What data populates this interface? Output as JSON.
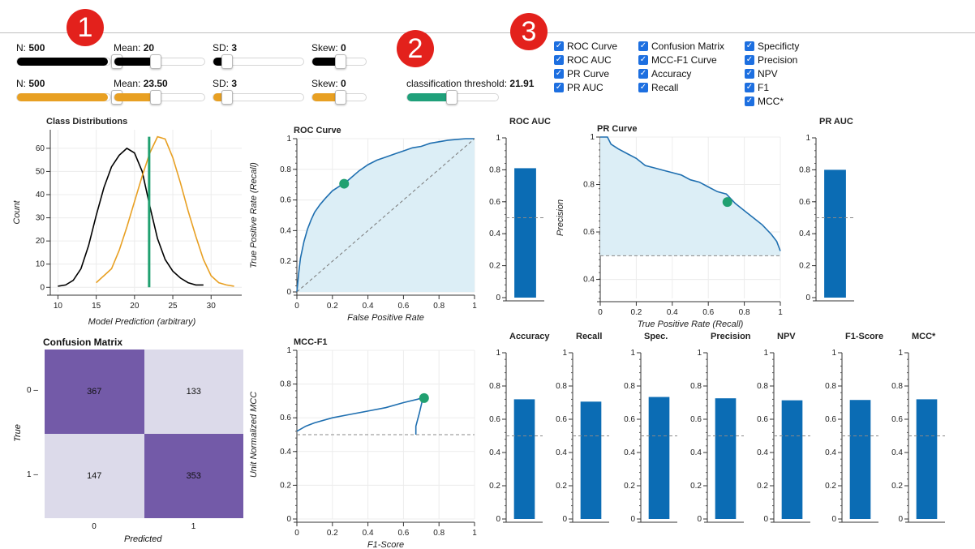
{
  "badges": [
    "1",
    "2",
    "3"
  ],
  "class0": {
    "n_label": "N: ",
    "n_value": "500",
    "mean_label": "Mean: ",
    "mean_value": "20",
    "sd_label": "SD: ",
    "sd_value": "3",
    "skew_label": "Skew: ",
    "skew_value": "0",
    "color": "#000000"
  },
  "class1": {
    "n_label": "N: ",
    "n_value": "500",
    "mean_label": "Mean: ",
    "mean_value": "23.50",
    "sd_label": "SD: ",
    "sd_value": "3",
    "skew_label": "Skew: ",
    "skew_value": "0",
    "color": "#e8a023"
  },
  "threshold": {
    "label": "classification threshold: ",
    "value": "21.91",
    "color": "#1fa07a"
  },
  "checkboxes": [
    [
      "ROC Curve",
      "ROC AUC",
      "PR Curve",
      "PR AUC"
    ],
    [
      "Confusion Matrix",
      "MCC-F1 Curve",
      "Accuracy",
      "Recall"
    ],
    [
      "Specificty",
      "Precision",
      "NPV",
      "F1",
      "MCC*"
    ]
  ],
  "colors": {
    "curve": "#1f6fb0",
    "bar": "#0b6cb4",
    "fill": "#dceef6",
    "marker": "#20a070",
    "cm_dark": "#735aa8",
    "cm_light": "#dcdaea"
  },
  "dist_plot": {
    "title": "Class Distributions",
    "xlabel": "Model Prediction (arbitrary)",
    "ylabel": "Count",
    "xticks": [
      "10",
      "15",
      "20",
      "25",
      "30"
    ],
    "yticks": [
      "0",
      "10",
      "20",
      "30",
      "40",
      "50",
      "60"
    ]
  },
  "roc_plot": {
    "title": "ROC Curve",
    "xlabel": "False Positive Rate",
    "ylabel": "True Positive Rate (Recall)",
    "xticks": [
      "0",
      "0.2",
      "0.4",
      "0.6",
      "0.8",
      "1"
    ],
    "yticks": [
      "0",
      "0.2",
      "0.4",
      "0.6",
      "0.8",
      "1"
    ]
  },
  "pr_plot": {
    "title": "PR Curve",
    "xlabel": "True Positive Rate (Recall)",
    "ylabel": "Precision",
    "xticks": [
      "0",
      "0.2",
      "0.4",
      "0.6",
      "0.8",
      "1"
    ],
    "yticks": [
      "0.4",
      "0.6",
      "0.8",
      "1"
    ]
  },
  "mcc_plot": {
    "title": "MCC-F1",
    "xlabel": "F1-Score",
    "ylabel": "Unit Normalized MCC",
    "xticks": [
      "0",
      "0.2",
      "0.4",
      "0.6",
      "0.8",
      "1"
    ],
    "yticks": [
      "0",
      "0.2",
      "0.4",
      "0.6",
      "0.8",
      "1"
    ]
  },
  "bar_yticks": [
    "0",
    "0.2",
    "0.4",
    "0.6",
    "0.8",
    "1"
  ],
  "confusion": {
    "title": "Confusion Matrix",
    "xlabel": "Predicted",
    "ylabel": "True",
    "row_labels": [
      "0",
      "1"
    ],
    "col_labels": [
      "0",
      "1"
    ],
    "cells": [
      [
        "367",
        "133"
      ],
      [
        "147",
        "353"
      ]
    ]
  },
  "chart_data": [
    {
      "type": "line",
      "title": "Class Distributions",
      "xlabel": "Model Prediction (arbitrary)",
      "ylabel": "Count",
      "xlim": [
        9,
        34
      ],
      "ylim": [
        -2,
        68
      ],
      "series": [
        {
          "x": [
            10,
            11,
            12,
            13,
            14,
            15,
            16,
            17,
            18,
            19,
            20,
            21,
            22,
            23,
            24,
            25,
            26,
            27,
            28,
            29
          ],
          "values": [
            0.5,
            1,
            3,
            8,
            18,
            31,
            43,
            52,
            57,
            60,
            58,
            50,
            35,
            21,
            12,
            7,
            4,
            2,
            1,
            1
          ]
        },
        {
          "x": [
            15,
            16,
            17,
            18,
            19,
            20,
            21,
            22,
            23,
            24,
            25,
            26,
            27,
            28,
            29,
            30,
            31,
            32,
            33
          ],
          "values": [
            2,
            5,
            8,
            16,
            26,
            37,
            48,
            58,
            65,
            64,
            56,
            45,
            33,
            22,
            12,
            5,
            2,
            1,
            0.5
          ]
        }
      ],
      "markers": [
        {
          "x": 21.91
        }
      ]
    },
    {
      "type": "line",
      "title": "ROC Curve",
      "xlabel": "False Positive Rate",
      "ylabel": "True Positive Rate (Recall)",
      "xlim": [
        0,
        1
      ],
      "ylim": [
        0,
        1
      ],
      "series": [
        {
          "x": [
            0,
            0.01,
            0.02,
            0.04,
            0.06,
            0.08,
            0.1,
            0.13,
            0.16,
            0.2,
            0.24,
            0.27,
            0.3,
            0.35,
            0.4,
            0.45,
            0.5,
            0.55,
            0.6,
            0.65,
            0.7,
            0.75,
            0.8,
            0.85,
            0.9,
            0.95,
            1
          ],
          "values": [
            0,
            0.12,
            0.22,
            0.33,
            0.41,
            0.47,
            0.52,
            0.57,
            0.61,
            0.66,
            0.69,
            0.71,
            0.74,
            0.79,
            0.83,
            0.86,
            0.88,
            0.9,
            0.92,
            0.94,
            0.95,
            0.97,
            0.98,
            0.99,
            0.995,
            1,
            1
          ]
        }
      ],
      "point": {
        "x": 0.266,
        "y": 0.706
      }
    },
    {
      "type": "bar",
      "title": "ROC AUC",
      "values": [
        0.81
      ],
      "ylim": [
        0,
        1
      ],
      "baseline": 0.5
    },
    {
      "type": "line",
      "title": "PR Curve",
      "xlabel": "True Positive Rate (Recall)",
      "ylabel": "Precision",
      "xlim": [
        0,
        1
      ],
      "ylim": [
        0.32,
        1
      ],
      "series": [
        {
          "x": [
            0,
            0.04,
            0.06,
            0.1,
            0.15,
            0.2,
            0.25,
            0.3,
            0.35,
            0.4,
            0.45,
            0.5,
            0.55,
            0.6,
            0.65,
            0.7,
            0.75,
            0.8,
            0.85,
            0.9,
            0.95,
            0.98,
            1
          ],
          "values": [
            1,
            1,
            0.97,
            0.95,
            0.93,
            0.91,
            0.88,
            0.87,
            0.86,
            0.85,
            0.84,
            0.82,
            0.81,
            0.79,
            0.77,
            0.76,
            0.72,
            0.69,
            0.66,
            0.63,
            0.59,
            0.56,
            0.52
          ]
        }
      ],
      "point": {
        "x": 0.706,
        "y": 0.726
      },
      "baseline": 0.5
    },
    {
      "type": "bar",
      "title": "PR AUC",
      "values": [
        0.8
      ],
      "ylim": [
        0,
        1
      ],
      "baseline": 0.5
    },
    {
      "type": "line",
      "title": "MCC-F1",
      "xlabel": "F1-Score",
      "ylabel": "Unit Normalized MCC",
      "xlim": [
        0,
        1
      ],
      "ylim": [
        0,
        1
      ],
      "series": [
        {
          "x": [
            0,
            0.05,
            0.1,
            0.2,
            0.3,
            0.4,
            0.5,
            0.6,
            0.68,
            0.71,
            0.69,
            0.67,
            0.67
          ],
          "values": [
            0.52,
            0.55,
            0.57,
            0.6,
            0.62,
            0.64,
            0.66,
            0.69,
            0.71,
            0.72,
            0.63,
            0.55,
            0.5
          ]
        }
      ],
      "point": {
        "x": 0.716,
        "y": 0.717
      },
      "baseline": 0.5
    },
    {
      "type": "bar",
      "title": "Accuracy",
      "values": [
        0.72
      ],
      "ylim": [
        0,
        1
      ],
      "baseline": 0.5
    },
    {
      "type": "bar",
      "title": "Recall",
      "values": [
        0.706
      ],
      "ylim": [
        0,
        1
      ],
      "baseline": 0.5
    },
    {
      "type": "bar",
      "title": "Spec.",
      "values": [
        0.734
      ],
      "ylim": [
        0,
        1
      ],
      "baseline": 0.5
    },
    {
      "type": "bar",
      "title": "Precision",
      "values": [
        0.726
      ],
      "ylim": [
        0,
        1
      ],
      "baseline": 0.5
    },
    {
      "type": "bar",
      "title": "NPV",
      "values": [
        0.714
      ],
      "ylim": [
        0,
        1
      ],
      "baseline": 0.5
    },
    {
      "type": "bar",
      "title": "F1-Score",
      "values": [
        0.716
      ],
      "ylim": [
        0,
        1
      ],
      "baseline": 0.5
    },
    {
      "type": "bar",
      "title": "MCC*",
      "values": [
        0.72
      ],
      "ylim": [
        0,
        1
      ],
      "baseline": 0.5
    }
  ]
}
